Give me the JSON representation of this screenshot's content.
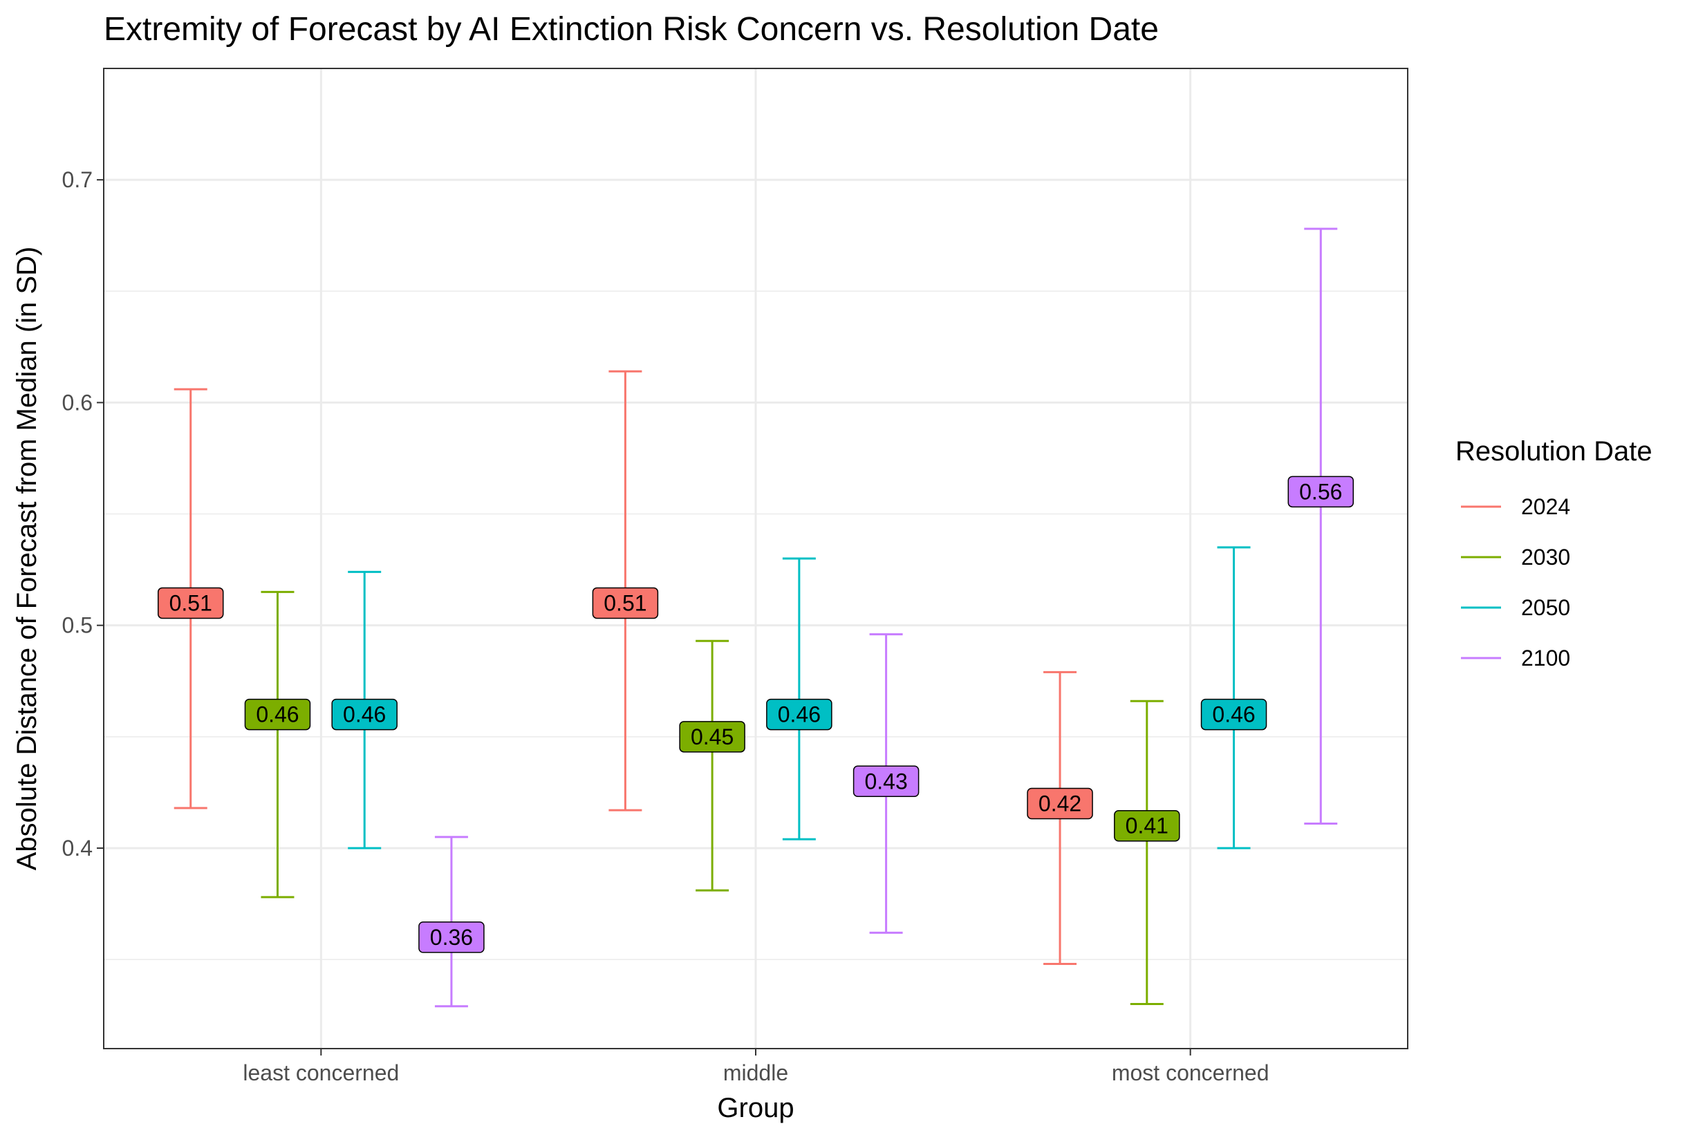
{
  "chart_data": {
    "type": "errorbar",
    "title": "Extremity of Forecast by AI Extinction Risk Concern vs. Resolution Date",
    "xlabel": "Group",
    "ylabel": "Absolute Distance of Forecast from Median (in SD)",
    "categories": [
      "least concerned",
      "middle",
      "most concerned"
    ],
    "ylim": [
      0.31,
      0.75
    ],
    "yticks": [
      0.4,
      0.5,
      0.6,
      0.7
    ],
    "ytick_labels": [
      "0.4",
      "0.5",
      "0.6",
      "0.7"
    ],
    "grid": true,
    "legend": {
      "title": "Resolution Date",
      "position": "right"
    },
    "series": [
      {
        "name": "2024",
        "color": "#F8766D",
        "values": [
          0.51,
          0.51,
          0.42
        ],
        "labels": [
          "0.51",
          "0.51",
          "0.42"
        ],
        "lower": [
          0.418,
          0.417,
          0.348
        ],
        "upper": [
          0.606,
          0.614,
          0.479
        ]
      },
      {
        "name": "2030",
        "color": "#7CAE00",
        "values": [
          0.46,
          0.45,
          0.41
        ],
        "labels": [
          "0.46",
          "0.45",
          "0.41"
        ],
        "lower": [
          0.378,
          0.381,
          0.33
        ],
        "upper": [
          0.515,
          0.493,
          0.466
        ]
      },
      {
        "name": "2050",
        "color": "#00BFC4",
        "values": [
          0.46,
          0.46,
          0.46
        ],
        "labels": [
          "0.46",
          "0.46",
          "0.46"
        ],
        "lower": [
          0.4,
          0.404,
          0.4
        ],
        "upper": [
          0.524,
          0.53,
          0.535
        ]
      },
      {
        "name": "2100",
        "color": "#C77CFF",
        "values": [
          0.36,
          0.43,
          0.56
        ],
        "labels": [
          "0.36",
          "0.43",
          "0.56"
        ],
        "lower": [
          0.329,
          0.362,
          0.411
        ],
        "upper": [
          0.405,
          0.496,
          0.678
        ]
      }
    ]
  }
}
